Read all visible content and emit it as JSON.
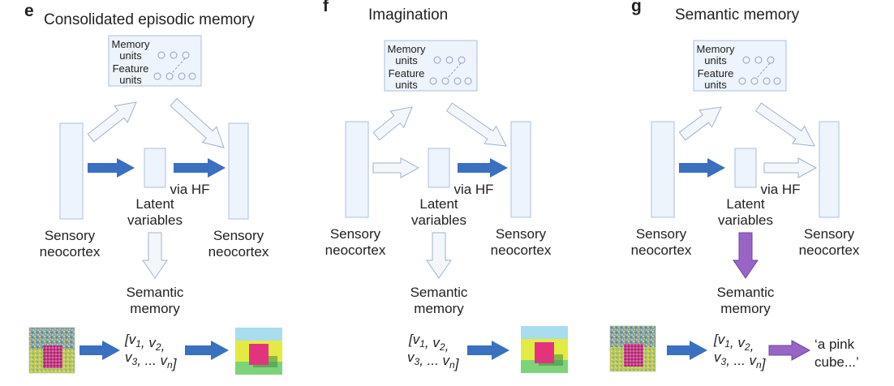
{
  "panels": [
    {
      "letter": "e",
      "title": "Consolidated episodic memory",
      "memory_units": [
        "Memory",
        "units"
      ],
      "feature_units": [
        "Feature",
        "units"
      ],
      "latent": [
        "Latent",
        "variables"
      ],
      "via": "via HF",
      "sensory_left": [
        "Sensory",
        "neocortex"
      ],
      "sensory_right": [
        "Sensory",
        "neocortex"
      ],
      "semantic": [
        "Semantic",
        "memory"
      ],
      "vector": [
        "[v1, v2,",
        "v3, ... vn]"
      ]
    },
    {
      "letter": "f",
      "title": "Imagination",
      "memory_units": [
        "Memory",
        "units"
      ],
      "feature_units": [
        "Feature",
        "units"
      ],
      "latent": [
        "Latent",
        "variables"
      ],
      "via": "via HF",
      "sensory_left": [
        "Sensory",
        "neocortex"
      ],
      "sensory_right": [
        "Sensory",
        "neocortex"
      ],
      "semantic": [
        "Semantic",
        "memory"
      ],
      "vector": [
        "[v1, v2,",
        "v3, ... vn]"
      ]
    },
    {
      "letter": "g",
      "title": "Semantic memory",
      "memory_units": [
        "Memory",
        "units"
      ],
      "feature_units": [
        "Feature",
        "units"
      ],
      "latent": [
        "Latent",
        "variables"
      ],
      "via": "via HF",
      "sensory_left": [
        "Sensory",
        "neocortex"
      ],
      "sensory_right": [
        "Sensory",
        "neocortex"
      ],
      "semantic": [
        "Semantic",
        "memory"
      ],
      "vector": [
        "[v1, v2,",
        "v3, ... vn]"
      ],
      "caption": [
        "‘a pink",
        "cube...’"
      ]
    }
  ],
  "colors": {
    "box_fill": "#eef4fb",
    "box_stroke": "#a9c0dc",
    "arrow_blue": "#3b6fc0",
    "arrow_light": "#f3f7fc",
    "arrow_light_stroke": "#9fb3cc",
    "arrow_purple": "#9865c6"
  }
}
